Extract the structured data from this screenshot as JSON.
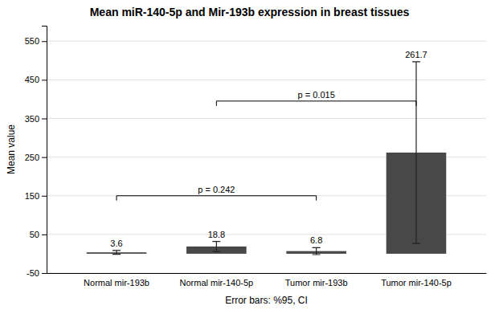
{
  "chart_data": {
    "type": "bar",
    "title": "Mean miR-140-5p and Mir-193b expression in breast tissues",
    "xlabel": "Error bars: %95, CI",
    "ylabel": "Mean value",
    "categories": [
      "Normal mir-193b",
      "Normal mir-140-5p",
      "Tumor mir-193b",
      "Tumor mir-140-5p"
    ],
    "values": [
      3.6,
      18.8,
      6.8,
      261.7
    ],
    "errors": [
      5.0,
      13.0,
      9.0,
      235.0
    ],
    "color": "#484848",
    "ylim": [
      -50,
      590
    ],
    "yticks": [
      550,
      450,
      350,
      250,
      150,
      50,
      -50
    ],
    "grid": true,
    "data_labels": true,
    "annotations": [
      {
        "text": "p = 0.242",
        "from": "Normal mir-193b",
        "to": "Tumor mir-193b",
        "y": 150
      },
      {
        "text": "p = 0.015",
        "from": "Normal mir-140-5p",
        "to": "Tumor mir-140-5p",
        "y": 395
      }
    ]
  }
}
